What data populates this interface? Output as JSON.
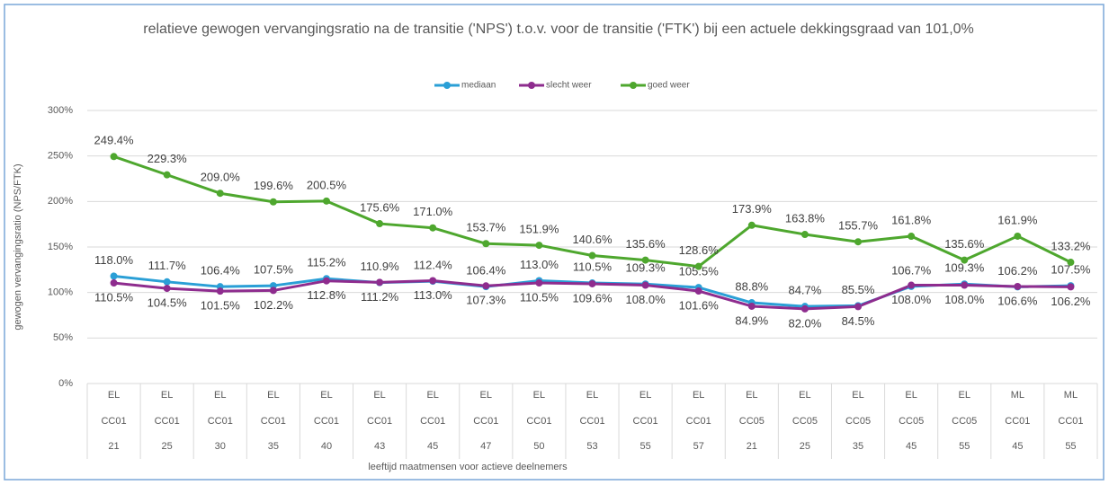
{
  "chart_data": {
    "type": "line",
    "title": "relatieve gewogen vervangingsratio na de transitie ('NPS') t.o.v. voor de transitie ('FTK') bij een actuele dekkingsgraad van 101,0%",
    "xlabel": "leeftijd maatmensen voor actieve deelnemers",
    "ylabel": "gewogen vervangingsratio (NPS/FTK)",
    "categories": [
      [
        "EL",
        "CC01",
        "21"
      ],
      [
        "EL",
        "CC01",
        "25"
      ],
      [
        "EL",
        "CC01",
        "30"
      ],
      [
        "EL",
        "CC01",
        "35"
      ],
      [
        "EL",
        "CC01",
        "40"
      ],
      [
        "EL",
        "CC01",
        "43"
      ],
      [
        "EL",
        "CC01",
        "45"
      ],
      [
        "EL",
        "CC01",
        "47"
      ],
      [
        "EL",
        "CC01",
        "50"
      ],
      [
        "EL",
        "CC01",
        "53"
      ],
      [
        "EL",
        "CC01",
        "55"
      ],
      [
        "EL",
        "CC01",
        "57"
      ],
      [
        "EL",
        "CC05",
        "21"
      ],
      [
        "EL",
        "CC05",
        "25"
      ],
      [
        "EL",
        "CC05",
        "35"
      ],
      [
        "EL",
        "CC05",
        "45"
      ],
      [
        "EL",
        "CC05",
        "55"
      ],
      [
        "ML",
        "CC01",
        "45"
      ],
      [
        "ML",
        "CC01",
        "55"
      ]
    ],
    "series": [
      {
        "name": "mediaan",
        "color": "#2a9fd6",
        "label_position": "above",
        "values": [
          118.0,
          111.7,
          106.4,
          107.5,
          115.2,
          110.9,
          112.4,
          106.4,
          113.0,
          110.5,
          109.3,
          105.5,
          88.8,
          84.7,
          85.5,
          106.7,
          109.3,
          106.2,
          107.5
        ],
        "value_labels": [
          "118.0%",
          "111.7%",
          "106.4%",
          "107.5%",
          "115.2%",
          "110.9%",
          "112.4%",
          "106.4%",
          "113.0%",
          "110.5%",
          "109.3%",
          "105.5%",
          "88.8%",
          "84.7%",
          "85.5%",
          "106.7%",
          "109.3%",
          "106.2%",
          "107.5%"
        ]
      },
      {
        "name": "slecht weer",
        "color": "#8e2c8e",
        "label_position": "below",
        "values": [
          110.5,
          104.5,
          101.5,
          102.2,
          112.8,
          111.2,
          113.0,
          107.3,
          110.5,
          109.6,
          108.0,
          101.6,
          84.9,
          82.0,
          84.5,
          108.0,
          108.0,
          106.6,
          106.2
        ],
        "value_labels": [
          "110.5%",
          "104.5%",
          "101.5%",
          "102.2%",
          "112.8%",
          "111.2%",
          "113.0%",
          "107.3%",
          "110.5%",
          "109.6%",
          "108.0%",
          "101.6%",
          "84.9%",
          "82.0%",
          "84.5%",
          "108.0%",
          "108.0%",
          "106.6%",
          "106.2%"
        ]
      },
      {
        "name": "goed weer",
        "color": "#4ea72e",
        "label_position": "above",
        "values": [
          249.4,
          229.3,
          209.0,
          199.6,
          200.5,
          175.6,
          171.0,
          153.7,
          151.9,
          140.6,
          135.6,
          128.6,
          173.9,
          163.8,
          155.7,
          161.8,
          135.6,
          161.9,
          133.2
        ],
        "value_labels": [
          "249.4%",
          "229.3%",
          "209.0%",
          "199.6%",
          "200.5%",
          "175.6%",
          "171.0%",
          "153.7%",
          "151.9%",
          "140.6%",
          "135.6%",
          "128.6%",
          "173.9%",
          "163.8%",
          "155.7%",
          "161.8%",
          "135.6%",
          "161.9%",
          "133.2%"
        ]
      }
    ],
    "ylim": [
      0,
      300
    ],
    "yticks": [
      {
        "value": 0,
        "label": "0%"
      },
      {
        "value": 50,
        "label": "50%"
      },
      {
        "value": 100,
        "label": "100%"
      },
      {
        "value": 150,
        "label": "150%"
      },
      {
        "value": 200,
        "label": "200%"
      },
      {
        "value": 250,
        "label": "250%"
      },
      {
        "value": 300,
        "label": "300%"
      }
    ],
    "grid": true,
    "legend": "top"
  }
}
